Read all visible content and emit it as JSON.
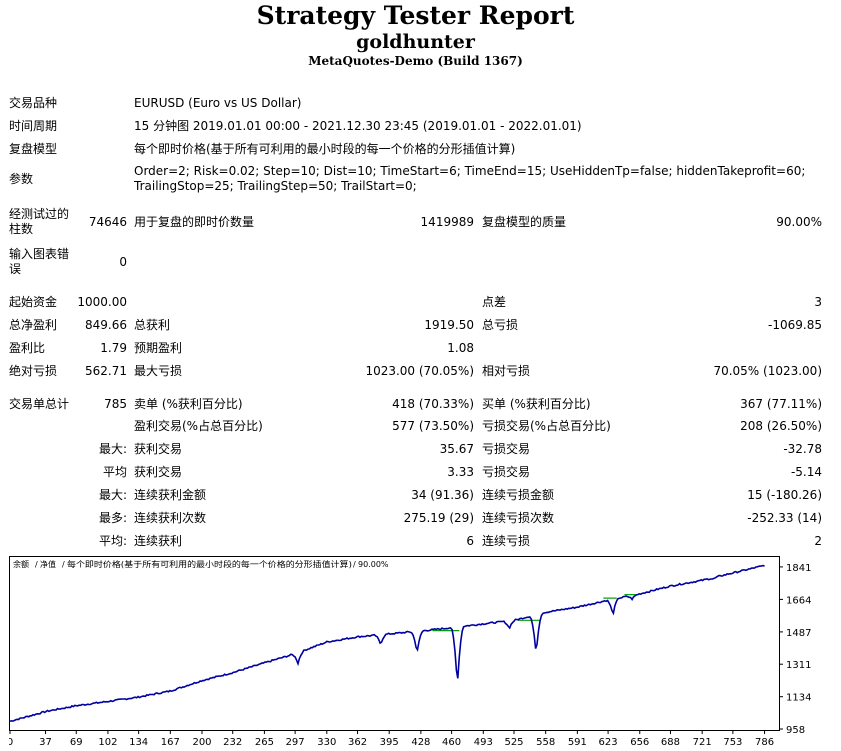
{
  "report": {
    "title": "Strategy Tester Report",
    "expert": "goldhunter",
    "server": "MetaQuotes-Demo (Build 1367)"
  },
  "settings": {
    "symbol_label": "交易品种",
    "symbol_value": "EURUSD (Euro vs US Dollar)",
    "period_label": "时间周期",
    "period_value": "15 分钟图 2019.01.01 00:00 - 2021.12.30 23:45 (2019.01.01 - 2022.01.01)",
    "model_label": "复盘模型",
    "model_value": "每个即时价格(基于所有可利用的最小时段的每一个价格的分形插值计算)",
    "params_label": "参数",
    "params_value": "Order=2; Risk=0.02; Step=10; Dist=10; TimeStart=6; TimeEnd=15; UseHiddenTp=false; hiddenTakeprofit=60; TrailingStop=25; TrailingStep=50; TrailStart=0;"
  },
  "stats": {
    "bars_label": "经测试过的柱数",
    "bars_value": "74646",
    "ticks_label": "用于复盘的即时价数量",
    "ticks_value": "1419989",
    "quality_label": "复盘模型的质量",
    "quality_value": "90.00%",
    "errors_label": "输入图表错误",
    "errors_value": "0",
    "deposit_label": "起始资金",
    "deposit_value": "1000.00",
    "spread_label": "点差",
    "spread_value": "3",
    "net_label": "总净盈利",
    "net_value": "849.66",
    "gross_profit_label": "总获利",
    "gross_profit_value": "1919.50",
    "gross_loss_label": "总亏损",
    "gross_loss_value": "-1069.85",
    "pf_label": "盈利比",
    "pf_value": "1.79",
    "expected_label": "预期盈利",
    "expected_value": "1.08",
    "abs_dd_label": "绝对亏损",
    "abs_dd_value": "562.71",
    "max_dd_label": "最大亏损",
    "max_dd_value": "1023.00 (70.05%)",
    "rel_dd_label": "相对亏损",
    "rel_dd_value": "70.05% (1023.00)",
    "trades_label": "交易单总计",
    "trades_value": "785",
    "short_label": "卖单 (%获利百分比)",
    "short_value": "418 (70.33%)",
    "long_label": "买单 (%获利百分比)",
    "long_value": "367 (77.11%)",
    "profit_trades_label": "盈利交易(%占总百分比)",
    "profit_trades_value": "577 (73.50%)",
    "loss_trades_label": "亏损交易(%占总百分比)",
    "loss_trades_value": "208 (26.50%)",
    "largest_prefix": "最大:",
    "largest_profit_label": "获利交易",
    "largest_profit_value": "35.67",
    "largest_loss_label": "亏损交易",
    "largest_loss_value": "-32.78",
    "average_prefix": "平均",
    "avg_profit_label": "获利交易",
    "avg_profit_value": "3.33",
    "avg_loss_label": "亏损交易",
    "avg_loss_value": "-5.14",
    "max_consec_prefix": "最大:",
    "max_consec_wins_label": "连续获利金额",
    "max_consec_wins_value": "34 (91.36)",
    "max_consec_losses_label": "连续亏损金额",
    "max_consec_losses_value": "15 (-180.26)",
    "maximal_prefix": "最多:",
    "maximal_wins_label": "连续获利次数",
    "maximal_wins_value": "275.19 (29)",
    "maximal_losses_label": "连续亏损次数",
    "maximal_losses_value": "-252.33 (14)",
    "avg_consec_prefix": "平均:",
    "avg_consec_wins_label": "连续获利",
    "avg_consec_wins_value": "6",
    "avg_consec_losses_label": "连续亏损",
    "avg_consec_losses_value": "2"
  },
  "chart_data": {
    "type": "line",
    "legend": {
      "balance_label": "余额",
      "equity_label": "净值",
      "model_text": "每个即时价格(基于所有可利用的最小时段的每一个价格的分形插值计算)",
      "quality_text": "90.00%",
      "separator": "/"
    },
    "colors": {
      "balance": "#0000a0",
      "equity": "#00a000"
    },
    "x_ticks": [
      0,
      37,
      69,
      102,
      134,
      167,
      200,
      232,
      265,
      297,
      330,
      362,
      395,
      428,
      460,
      493,
      525,
      558,
      591,
      623,
      656,
      688,
      721,
      753,
      786
    ],
    "y_ticks": [
      "958",
      "1134",
      "1311",
      "1487",
      "1664",
      "1841"
    ],
    "xlim": [
      0,
      800
    ],
    "ylim": [
      958,
      1895
    ],
    "series": [
      {
        "name": "余额",
        "x": [
          0,
          37,
          69,
          102,
          134,
          167,
          200,
          232,
          265,
          297,
          330,
          362,
          395,
          428,
          460,
          493,
          525,
          558,
          591,
          623,
          656,
          688,
          721,
          753,
          786
        ],
        "y": [
          1000,
          1053,
          1085,
          1108,
          1132,
          1165,
          1222,
          1265,
          1318,
          1368,
          1432,
          1460,
          1476,
          1492,
          1510,
          1531,
          1550,
          1594,
          1622,
          1660,
          1694,
          1737,
          1768,
          1808,
          1849
        ]
      }
    ],
    "drawdowns": [
      {
        "x": 300,
        "y": 1316
      },
      {
        "x": 386,
        "y": 1420
      },
      {
        "x": 424,
        "y": 1375
      },
      {
        "x": 466,
        "y": 1193
      },
      {
        "x": 520,
        "y": 1506
      },
      {
        "x": 548,
        "y": 1363
      },
      {
        "x": 628,
        "y": 1580
      },
      {
        "x": 648,
        "y": 1666
      },
      {
        "x": 733,
        "y": 1775
      }
    ],
    "equity_flats": [
      {
        "x1": 440,
        "x2": 468,
        "y": 1494
      },
      {
        "x1": 529,
        "x2": 552,
        "y": 1550
      },
      {
        "x1": 618,
        "x2": 632,
        "y": 1671
      },
      {
        "x1": 640,
        "x2": 652,
        "y": 1690
      }
    ]
  }
}
